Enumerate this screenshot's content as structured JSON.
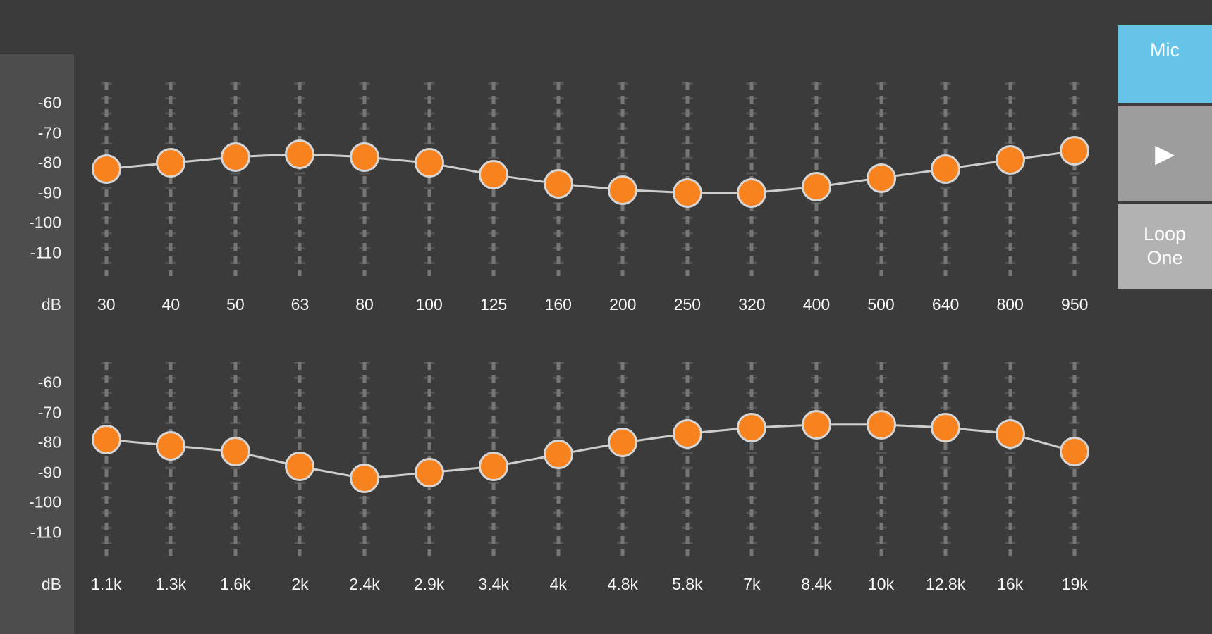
{
  "colors": {
    "background": "#3b3b3b",
    "axis_strip": "#4d4d4d",
    "knob": "#f8821e",
    "knob_ring": "#d6d6d6",
    "curve": "#cdcdcd",
    "mic_button": "#66c4e8",
    "play_button": "#9d9d9d",
    "loop_button": "#b2b2b2"
  },
  "sidebar": {
    "mic_label": "Mic",
    "play_icon": "▶",
    "loop_line1": "Loop",
    "loop_line2": "One"
  },
  "chart_data": [
    {
      "type": "line",
      "ylabel": "dB",
      "ylim": [
        -115,
        -55
      ],
      "yticks": [
        -60,
        -70,
        -80,
        -90,
        -100,
        -110
      ],
      "categories": [
        "30",
        "40",
        "50",
        "63",
        "80",
        "100",
        "125",
        "160",
        "200",
        "250",
        "320",
        "400",
        "500",
        "640",
        "800",
        "950"
      ],
      "values": [
        -82,
        -80,
        -78,
        -77,
        -78,
        -80,
        -84,
        -87,
        -89,
        -90,
        -90,
        -88,
        -85,
        -82,
        -79,
        -76
      ]
    },
    {
      "type": "line",
      "ylabel": "dB",
      "ylim": [
        -115,
        -55
      ],
      "yticks": [
        -60,
        -70,
        -80,
        -90,
        -100,
        -110
      ],
      "categories": [
        "1.1k",
        "1.3k",
        "1.6k",
        "2k",
        "2.4k",
        "2.9k",
        "3.4k",
        "4k",
        "4.8k",
        "5.8k",
        "7k",
        "8.4k",
        "10k",
        "12.8k",
        "16k",
        "19k"
      ],
      "values": [
        -79,
        -81,
        -83,
        -88,
        -92,
        -90,
        -88,
        -84,
        -80,
        -77,
        -75,
        -74,
        -74,
        -75,
        -77,
        -83
      ]
    }
  ]
}
